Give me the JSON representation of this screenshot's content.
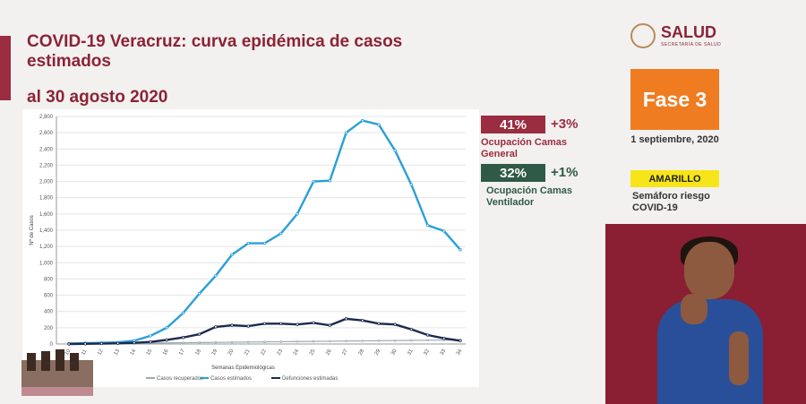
{
  "header": {
    "title": "COVID-19 Veracruz: curva epidémica de casos estimados",
    "subtitle": "al 30 agosto 2020"
  },
  "logo": {
    "name": "SALUD",
    "tagline": "SECRETARÍA DE SALUD"
  },
  "status_panel": {
    "fase_label": "Fase 3",
    "date": "1 septiembre, 2020",
    "semaforo_label": "AMARILLO",
    "semaforo_text": "Semáforo riesgo COVID-19",
    "semaforo_color": "#f7e51a",
    "fase_color": "#f07c22"
  },
  "occupancy": {
    "general": {
      "value": "41%",
      "delta": "+3%",
      "label": "Ocupación Camas General",
      "color": "#9b2c41"
    },
    "ventilador": {
      "value": "32%",
      "delta": "+1%",
      "label": "Ocupación Camas Ventilador",
      "color": "#2f5a46"
    }
  },
  "chart_data": {
    "type": "line",
    "xlabel": "Semanas Epidemiológicas",
    "ylabel": "Nº de Casos",
    "ylim": [
      0,
      2800
    ],
    "yticks": [
      0,
      200,
      400,
      600,
      800,
      1000,
      1200,
      1400,
      1600,
      1800,
      2000,
      2200,
      2400,
      2600,
      2800
    ],
    "ytick_labels": [
      "0",
      "200",
      "400",
      "600",
      "800",
      "1,000",
      "1,200",
      "1,400",
      "1,600",
      "1,800",
      "2,000",
      "2,200",
      "2,400",
      "2,600",
      "2,800"
    ],
    "x": [
      10,
      11,
      12,
      13,
      14,
      15,
      16,
      17,
      18,
      19,
      20,
      21,
      22,
      23,
      24,
      25,
      26,
      27,
      28,
      29,
      30,
      31,
      32,
      33,
      34
    ],
    "grid": true,
    "legend_position": "bottom",
    "series": [
      {
        "name": "Casos recuperados",
        "color": "#9aaab5",
        "values": [
          2,
          3,
          5,
          8,
          10,
          12,
          14,
          16,
          18,
          20,
          22,
          24,
          26,
          28,
          30,
          32,
          34,
          36,
          38,
          40,
          42,
          44,
          46,
          48,
          50
        ]
      },
      {
        "name": "Casos estimados",
        "color": "#2a9fd8",
        "values": [
          5,
          10,
          15,
          20,
          40,
          100,
          200,
          380,
          620,
          840,
          1100,
          1240,
          1240,
          1360,
          1600,
          2000,
          2010,
          2600,
          2750,
          2700,
          2380,
          1960,
          1460,
          1390,
          1160
        ]
      },
      {
        "name": "Defunciones estimadas",
        "color": "#1b2a4e",
        "values": [
          0,
          2,
          5,
          8,
          15,
          25,
          50,
          80,
          120,
          210,
          230,
          220,
          250,
          250,
          240,
          260,
          230,
          310,
          290,
          250,
          240,
          180,
          110,
          70,
          40
        ]
      }
    ]
  }
}
